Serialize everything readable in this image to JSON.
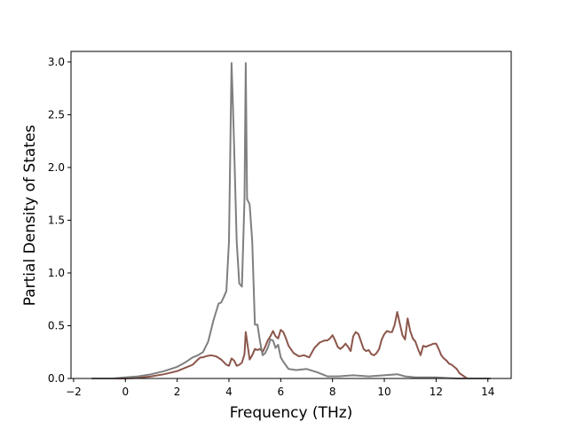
{
  "chart_data": {
    "type": "line",
    "title": "",
    "xlabel": "Frequency (THz)",
    "ylabel": "Partial Density of States",
    "xlim": [
      -2.1,
      14.9
    ],
    "ylim": [
      0,
      3.1
    ],
    "x_ticks": [
      -2,
      0,
      2,
      4,
      6,
      8,
      10,
      12,
      14
    ],
    "y_ticks": [
      0.0,
      0.5,
      1.0,
      1.5,
      2.0,
      2.5,
      3.0
    ],
    "x_tick_labels": [
      "−2",
      "0",
      "2",
      "4",
      "6",
      "8",
      "10",
      "12",
      "14"
    ],
    "y_tick_labels": [
      "0.0",
      "0.5",
      "1.0",
      "1.5",
      "2.0",
      "2.5",
      "3.0"
    ],
    "grid": false,
    "legend": "none",
    "series": [
      {
        "color": "#8c564b",
        "x": [
          -1.3,
          -0.5,
          0.0,
          0.5,
          1.0,
          1.5,
          2.0,
          2.3,
          2.6,
          2.8,
          2.9,
          3.0,
          3.1,
          3.3,
          3.5,
          3.7,
          3.9,
          4.0,
          4.1,
          4.2,
          4.3,
          4.4,
          4.5,
          4.6,
          4.65,
          4.7,
          4.8,
          4.9,
          5.0,
          5.1,
          5.2,
          5.3,
          5.4,
          5.5,
          5.6,
          5.7,
          5.8,
          5.9,
          6.0,
          6.1,
          6.2,
          6.3,
          6.5,
          6.7,
          6.9,
          7.1,
          7.3,
          7.5,
          7.7,
          7.8,
          7.9,
          8.0,
          8.1,
          8.2,
          8.3,
          8.4,
          8.5,
          8.6,
          8.7,
          8.8,
          8.9,
          9.0,
          9.1,
          9.2,
          9.3,
          9.4,
          9.5,
          9.6,
          9.7,
          9.8,
          9.9,
          10.0,
          10.1,
          10.2,
          10.3,
          10.4,
          10.5,
          10.6,
          10.7,
          10.8,
          10.9,
          11.0,
          11.1,
          11.2,
          11.3,
          11.4,
          11.5,
          11.6,
          11.7,
          11.8,
          11.9,
          12.0,
          12.1,
          12.2,
          12.3,
          12.4,
          12.5,
          12.6,
          12.7,
          12.8,
          12.9,
          13.2,
          14.1
        ],
        "y": [
          0.0,
          0.0,
          0.0,
          0.005,
          0.02,
          0.04,
          0.07,
          0.1,
          0.13,
          0.18,
          0.2,
          0.2,
          0.21,
          0.22,
          0.21,
          0.18,
          0.13,
          0.12,
          0.19,
          0.17,
          0.12,
          0.13,
          0.15,
          0.23,
          0.44,
          0.35,
          0.18,
          0.22,
          0.28,
          0.27,
          0.28,
          0.25,
          0.3,
          0.36,
          0.4,
          0.45,
          0.4,
          0.38,
          0.46,
          0.44,
          0.38,
          0.31,
          0.24,
          0.21,
          0.22,
          0.2,
          0.29,
          0.34,
          0.36,
          0.36,
          0.38,
          0.41,
          0.36,
          0.3,
          0.28,
          0.3,
          0.33,
          0.3,
          0.26,
          0.4,
          0.44,
          0.42,
          0.35,
          0.28,
          0.26,
          0.27,
          0.23,
          0.22,
          0.24,
          0.28,
          0.37,
          0.42,
          0.45,
          0.44,
          0.44,
          0.51,
          0.63,
          0.52,
          0.41,
          0.37,
          0.57,
          0.45,
          0.38,
          0.35,
          0.28,
          0.22,
          0.31,
          0.3,
          0.31,
          0.32,
          0.33,
          0.33,
          0.28,
          0.22,
          0.19,
          0.17,
          0.14,
          0.13,
          0.11,
          0.09,
          0.05,
          0.0,
          0.0
        ]
      },
      {
        "color": "#7f7f7f",
        "x": [
          -1.3,
          -0.5,
          0.0,
          0.5,
          1.0,
          1.5,
          2.0,
          2.3,
          2.6,
          2.8,
          3.0,
          3.2,
          3.4,
          3.6,
          3.7,
          3.8,
          3.9,
          4.0,
          4.1,
          4.15,
          4.2,
          4.3,
          4.4,
          4.5,
          4.6,
          4.65,
          4.7,
          4.8,
          4.9,
          5.0,
          5.1,
          5.2,
          5.3,
          5.4,
          5.5,
          5.6,
          5.7,
          5.8,
          5.9,
          6.0,
          6.1,
          6.3,
          6.6,
          7.0,
          7.4,
          7.8,
          8.2,
          8.8,
          9.4,
          10.0,
          10.5,
          10.8,
          11.2,
          12.0,
          12.8,
          13.5,
          14.1
        ],
        "y": [
          0.0,
          0.0,
          0.01,
          0.02,
          0.04,
          0.07,
          0.11,
          0.15,
          0.2,
          0.22,
          0.25,
          0.35,
          0.55,
          0.71,
          0.72,
          0.77,
          0.83,
          1.3,
          2.99,
          2.6,
          2.2,
          1.3,
          0.9,
          0.87,
          1.7,
          2.99,
          1.7,
          1.65,
          1.3,
          0.51,
          0.51,
          0.35,
          0.22,
          0.24,
          0.29,
          0.37,
          0.36,
          0.29,
          0.32,
          0.2,
          0.16,
          0.09,
          0.08,
          0.09,
          0.06,
          0.02,
          0.02,
          0.03,
          0.02,
          0.03,
          0.04,
          0.02,
          0.01,
          0.01,
          0.0,
          0.0,
          0.0
        ]
      }
    ]
  }
}
